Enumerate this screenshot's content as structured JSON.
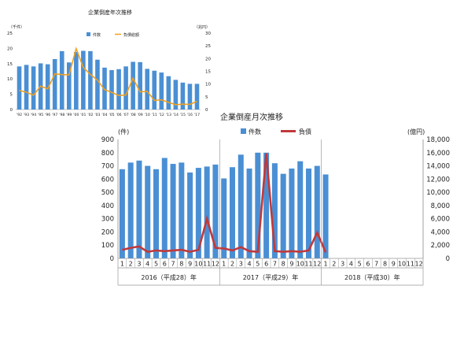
{
  "chart_data": [
    {
      "type": "bar",
      "title": "企業倒産年次推移",
      "y_left_unit": "（千件）",
      "y_right_unit": "（兆円）",
      "categories": [
        "'92",
        "'93",
        "'94",
        "'95",
        "'96",
        "'97",
        "'98",
        "'99",
        "'00",
        "'01",
        "'02",
        "'03",
        "'04",
        "'05",
        "'06",
        "'07",
        "'08",
        "'09",
        "'10",
        "'11",
        "'12",
        "'13",
        "'14",
        "'15",
        "'16",
        "'17"
      ],
      "ylim_left": [
        0,
        25
      ],
      "ylim_right": [
        0,
        30
      ],
      "yticks_left": [
        0,
        5,
        10,
        15,
        20,
        25
      ],
      "yticks_right": [
        0,
        5,
        10,
        15,
        20,
        25,
        30
      ],
      "series": [
        {
          "name": "件数",
          "kind": "bar",
          "axis": "left",
          "color": "#4a8fd4",
          "values": [
            14.1,
            14.6,
            14.1,
            15.1,
            14.8,
            16.5,
            19.1,
            15.4,
            18.8,
            19.2,
            19.1,
            16.3,
            13.7,
            12.9,
            13.2,
            14.1,
            15.6,
            15.5,
            13.3,
            12.7,
            12.1,
            10.9,
            9.7,
            8.8,
            8.4,
            8.4
          ]
        },
        {
          "name": "負債総額",
          "kind": "line",
          "axis": "right",
          "color": "#f0a020",
          "values": [
            7.5,
            6.8,
            5.6,
            9.2,
            8.1,
            14.0,
            13.7,
            13.6,
            23.9,
            16.5,
            13.8,
            11.5,
            7.8,
            6.7,
            5.5,
            5.7,
            12.3,
            6.9,
            7.1,
            3.6,
            3.8,
            2.8,
            1.9,
            2.1,
            2.0,
            3.2
          ]
        }
      ]
    },
    {
      "type": "bar",
      "title": "企業倒産月次推移",
      "y_left_unit": "(件)",
      "y_right_unit": "(億円)",
      "ylim_left": [
        0,
        900
      ],
      "ylim_right": [
        0,
        18000
      ],
      "yticks_left": [
        "0",
        "100",
        "200",
        "300",
        "400",
        "500",
        "600",
        "700",
        "800",
        "900"
      ],
      "yticks_right": [
        "0",
        "2,000",
        "4,000",
        "6,000",
        "8,000",
        "10,000",
        "12,000",
        "14,000",
        "16,000",
        "18,000"
      ],
      "months": [
        "1",
        "2",
        "3",
        "4",
        "5",
        "6",
        "7",
        "8",
        "9",
        "10",
        "11",
        "12",
        "1",
        "2",
        "3",
        "4",
        "5",
        "6",
        "7",
        "8",
        "9",
        "10",
        "11",
        "12",
        "1",
        "2",
        "3",
        "4",
        "5",
        "6",
        "7",
        "8",
        "9",
        "10",
        "11",
        "12"
      ],
      "year_groups": [
        "2016（平成28）年",
        "2017（平成29）年",
        "2018（平成30）年"
      ],
      "series": [
        {
          "name": "件数",
          "kind": "bar",
          "axis": "left",
          "color": "#4a8fd4",
          "values": [
            675,
            725,
            740,
            700,
            675,
            760,
            715,
            725,
            650,
            685,
            695,
            710,
            605,
            690,
            785,
            680,
            800,
            800,
            720,
            640,
            680,
            735,
            680,
            700,
            635,
            null,
            null,
            null,
            null,
            null,
            null,
            null,
            null,
            null,
            null,
            null
          ]
        },
        {
          "name": "負債",
          "kind": "line",
          "axis": "right",
          "color": "#c0393b",
          "values": [
            1300,
            1600,
            1800,
            1000,
            1200,
            1100,
            1200,
            1300,
            1000,
            1300,
            6000,
            1600,
            1500,
            1200,
            1700,
            1100,
            1000,
            15900,
            1100,
            1000,
            1100,
            1000,
            1200,
            3900,
            900,
            null,
            null,
            null,
            null,
            null,
            null,
            null,
            null,
            null,
            null,
            null
          ]
        }
      ]
    }
  ]
}
